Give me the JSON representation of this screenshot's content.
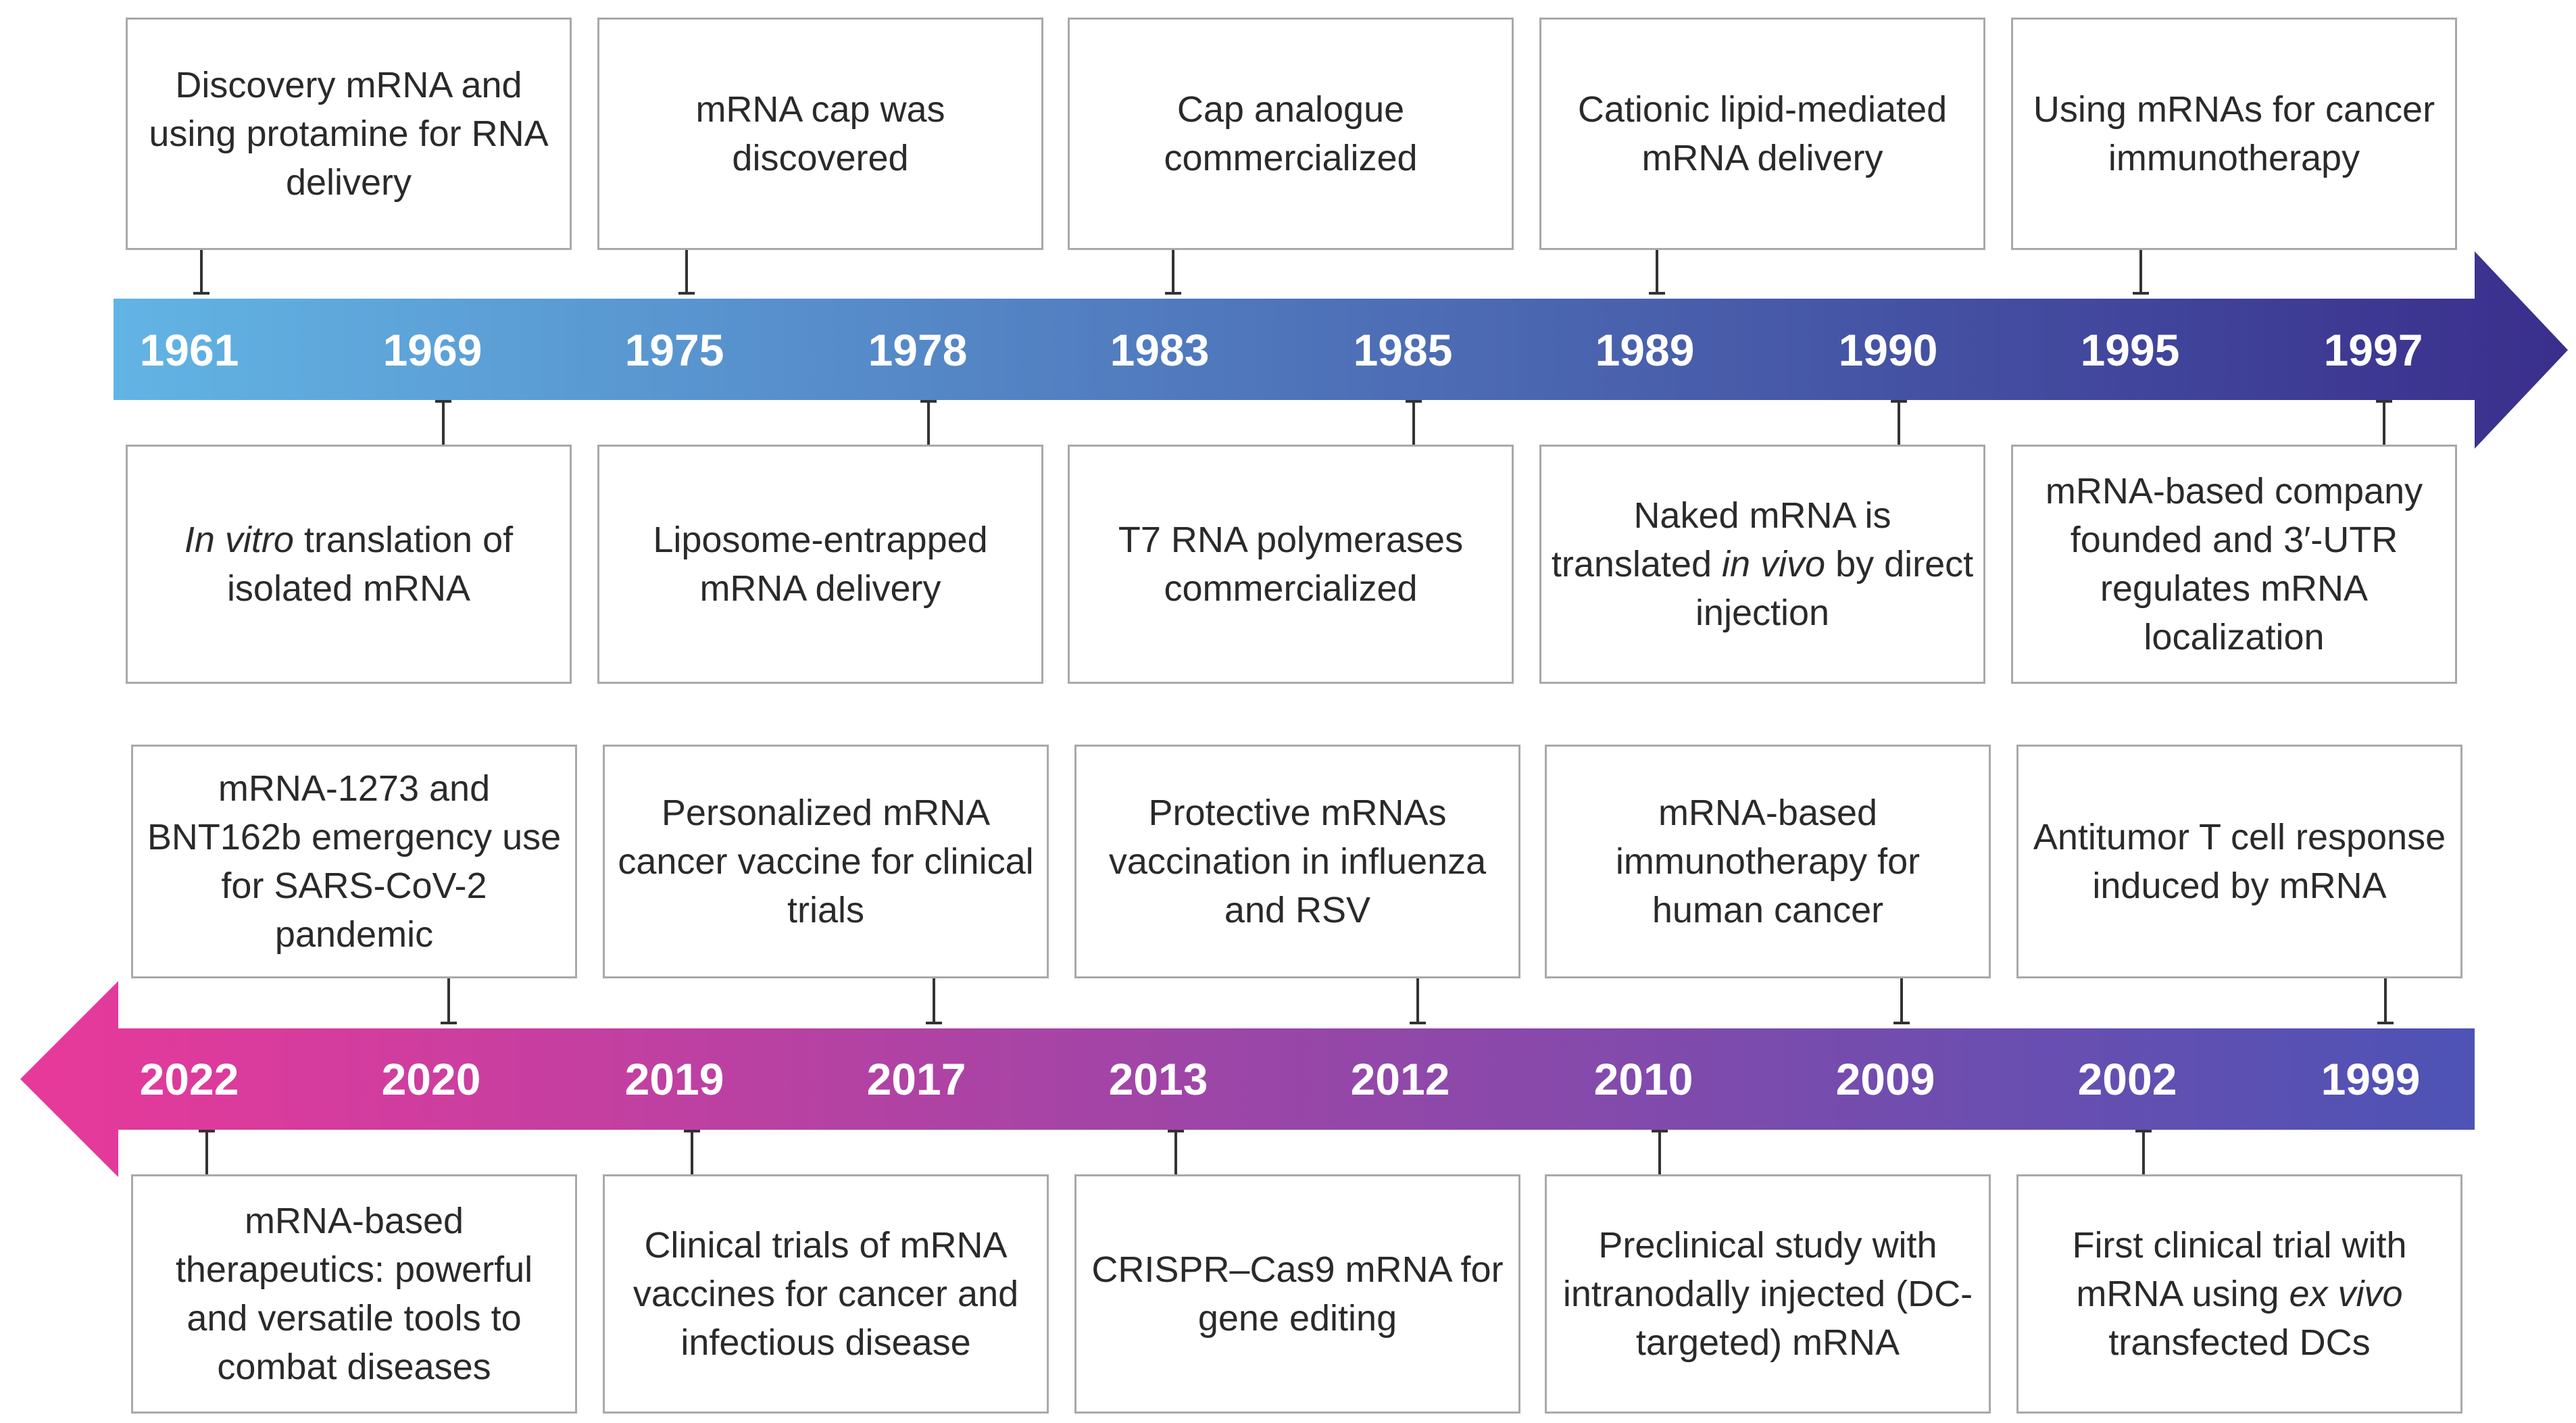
{
  "colors": {
    "top_arrow_start": "#62b4e4",
    "top_arrow_end": "#3a2e8c",
    "bottom_arrow_start": "#e8399a",
    "bottom_arrow_end": "#4d53b5",
    "box_border": "#a9a9a9"
  },
  "timeline_top": {
    "years": [
      "1961",
      "1969",
      "1975",
      "1978",
      "1983",
      "1985",
      "1989",
      "1990",
      "1995",
      "1997"
    ],
    "events_above": [
      {
        "year": "1961",
        "text": "Discovery  mRNA and using protamine for RNA delivery"
      },
      {
        "year": "1975",
        "text": "mRNA cap was discovered"
      },
      {
        "year": "1983",
        "text": "Cap analogue commercialized"
      },
      {
        "year": "1989",
        "text": "Cationic lipid-mediated mRNA delivery"
      },
      {
        "year": "1995",
        "text": "Using mRNAs for cancer immunotherapy"
      }
    ],
    "events_below": [
      {
        "year": "1969",
        "pre": "",
        "italic": "In vitro",
        "post": " translation of isolated mRNA"
      },
      {
        "year": "1978",
        "pre": "Liposome-entrapped mRNA delivery",
        "italic": "",
        "post": ""
      },
      {
        "year": "1985",
        "pre": "T7 RNA polymerases commercialized",
        "italic": "",
        "post": ""
      },
      {
        "year": "1990",
        "pre": "Naked mRNA is translated ",
        "italic": "in vivo",
        "post": " by direct injection"
      },
      {
        "year": "1997",
        "pre": "mRNA-based company founded and 3′-UTR regulates mRNA localization",
        "italic": "",
        "post": ""
      }
    ]
  },
  "timeline_bottom": {
    "years": [
      "2022",
      "2020",
      "2019",
      "2017",
      "2013",
      "2012",
      "2010",
      "2009",
      "2002",
      "1999"
    ],
    "events_above": [
      {
        "year": "2020",
        "text": "mRNA-1273 and BNT162b emergency use for SARS-CoV-2 pandemic"
      },
      {
        "year": "2017",
        "text": "Personalized mRNA cancer vaccine for clinical trials"
      },
      {
        "year": "2012",
        "text": "Protective mRNAs vaccination in influenza and RSV"
      },
      {
        "year": "2009",
        "text": "mRNA-based immunotherapy for human cancer"
      },
      {
        "year": "1999",
        "text": "Antitumor T cell response induced by mRNA"
      }
    ],
    "events_below": [
      {
        "year": "2022",
        "pre": "mRNA-based therapeutics: powerful and versatile tools to combat diseases",
        "italic": "",
        "post": ""
      },
      {
        "year": "2019",
        "pre": "Clinical trials of mRNA vaccines for cancer and infectious disease",
        "italic": "",
        "post": ""
      },
      {
        "year": "2013",
        "pre": "CRISPR–Cas9 mRNA for gene editing",
        "italic": "",
        "post": ""
      },
      {
        "year": "2010",
        "pre": "Preclinical study with intranodally injected (DC-targeted) mRNA",
        "italic": "",
        "post": ""
      },
      {
        "year": "2002",
        "pre": "First clinical trial with mRNA using ",
        "italic": "ex vivo",
        "post": " transfected DCs"
      }
    ]
  }
}
